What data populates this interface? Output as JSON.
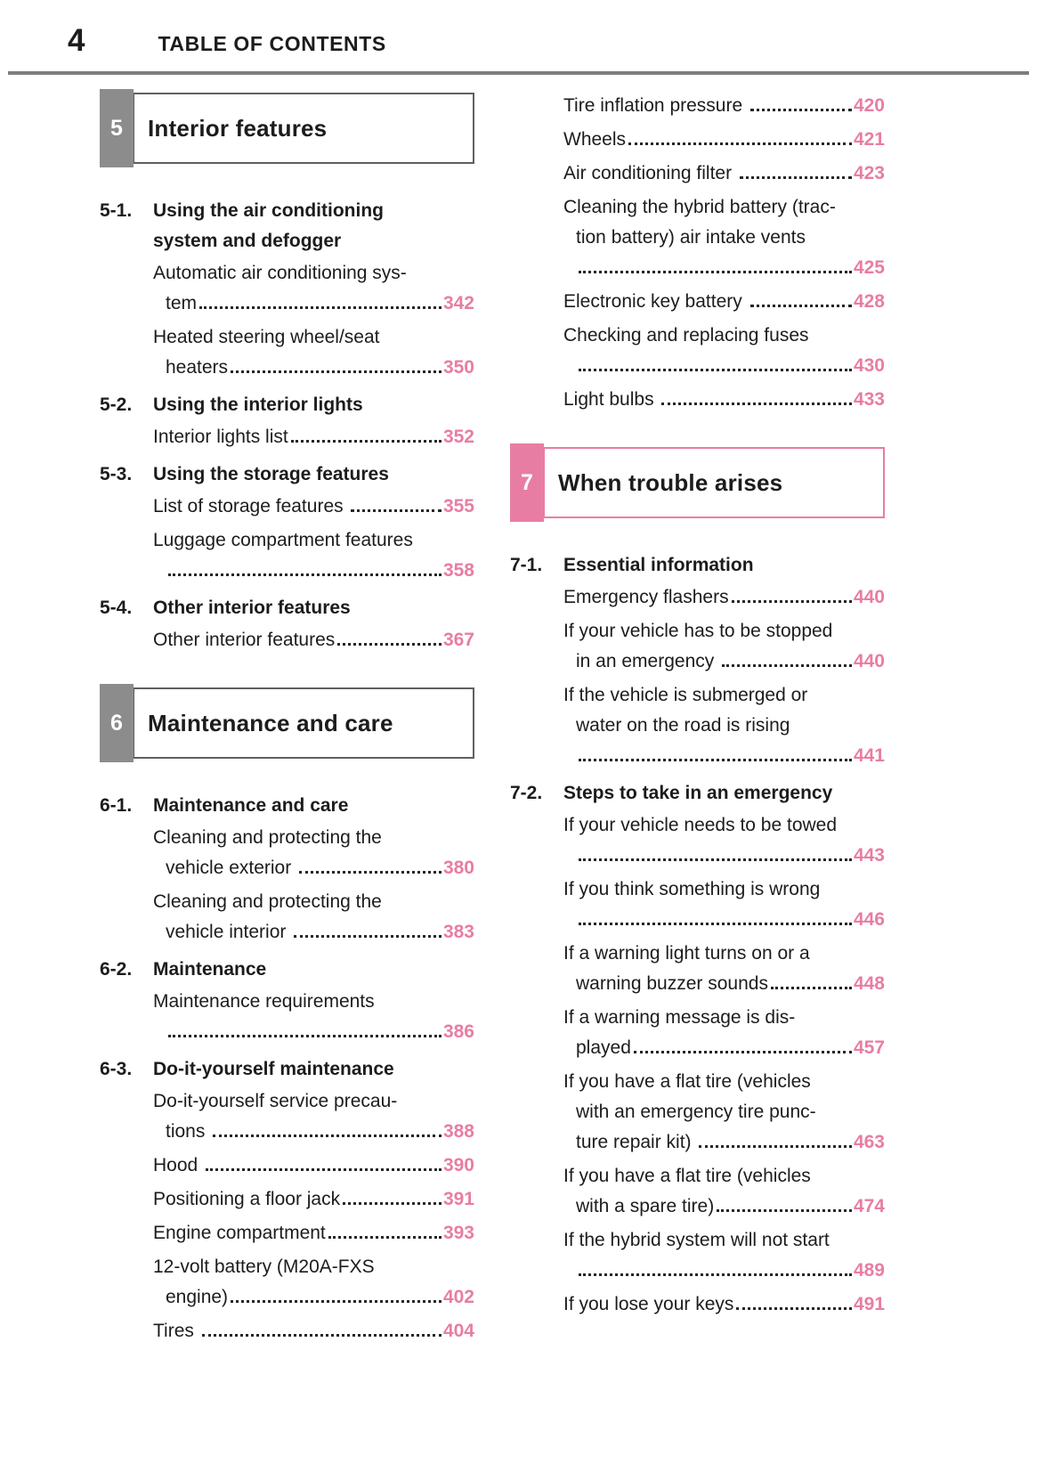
{
  "page": {
    "number": "4",
    "header_title": "TABLE OF CONTENTS"
  },
  "colors": {
    "accent_pink": "#e87da4",
    "tab_gray": "#8c8c8c",
    "box_border_gray": "#5f5f5f",
    "rule_gray": "#7e7e7e",
    "text_black": "#1c1c1c",
    "leader_dot": "#262626"
  },
  "left_column": {
    "blocks": [
      {
        "type": "section",
        "num": "5",
        "title": "Interior features",
        "color": "gray",
        "first": true
      },
      {
        "type": "heading",
        "num": "5-1.",
        "lines": [
          "Using the air conditioning",
          "system and defogger"
        ]
      },
      {
        "type": "entry",
        "lines": [
          "Automatic air conditioning sys-",
          "tem"
        ],
        "page": "342"
      },
      {
        "type": "entry",
        "lines": [
          "Heated steering wheel/seat",
          "heaters"
        ],
        "page": "350"
      },
      {
        "type": "heading",
        "num": "5-2.",
        "lines": [
          "Using the interior lights"
        ]
      },
      {
        "type": "entry",
        "lines": [
          "Interior lights list"
        ],
        "page": "352"
      },
      {
        "type": "heading",
        "num": "5-3.",
        "lines": [
          "Using the storage features"
        ]
      },
      {
        "type": "entry",
        "lines": [
          "List of storage features "
        ],
        "page": "355"
      },
      {
        "type": "entry",
        "lines": [
          "Luggage compartment features",
          ""
        ],
        "page": "358"
      },
      {
        "type": "heading",
        "num": "5-4.",
        "lines": [
          "Other interior features"
        ]
      },
      {
        "type": "entry",
        "lines": [
          "Other interior features"
        ],
        "page": "367"
      },
      {
        "type": "section",
        "num": "6",
        "title": "Maintenance and care",
        "color": "gray"
      },
      {
        "type": "heading",
        "num": "6-1.",
        "lines": [
          "Maintenance and care"
        ]
      },
      {
        "type": "entry",
        "lines": [
          "Cleaning and protecting the",
          "vehicle exterior "
        ],
        "page": "380"
      },
      {
        "type": "entry",
        "lines": [
          "Cleaning and protecting the",
          "vehicle interior "
        ],
        "page": "383"
      },
      {
        "type": "heading",
        "num": "6-2.",
        "lines": [
          "Maintenance"
        ]
      },
      {
        "type": "entry",
        "lines": [
          "Maintenance requirements",
          ""
        ],
        "page": "386"
      },
      {
        "type": "heading",
        "num": "6-3.",
        "lines": [
          "Do-it-yourself maintenance"
        ]
      },
      {
        "type": "entry",
        "lines": [
          "Do-it-yourself service precau-",
          "tions "
        ],
        "page": "388"
      },
      {
        "type": "entry",
        "lines": [
          "Hood "
        ],
        "page": "390"
      },
      {
        "type": "entry",
        "lines": [
          "Positioning a floor jack"
        ],
        "page": "391"
      },
      {
        "type": "entry",
        "lines": [
          "Engine compartment"
        ],
        "page": "393"
      },
      {
        "type": "entry",
        "lines": [
          "12-volt battery (M20A-FXS",
          "engine)"
        ],
        "page": "402"
      },
      {
        "type": "entry",
        "lines": [
          "Tires "
        ],
        "page": "404"
      }
    ]
  },
  "right_column": {
    "blocks": [
      {
        "type": "entry",
        "lines": [
          "Tire inflation pressure "
        ],
        "page": "420"
      },
      {
        "type": "entry",
        "lines": [
          "Wheels"
        ],
        "page": "421"
      },
      {
        "type": "entry",
        "lines": [
          "Air conditioning filter "
        ],
        "page": "423"
      },
      {
        "type": "entry",
        "lines": [
          "Cleaning the hybrid battery (trac-",
          "tion battery) air intake vents",
          ""
        ],
        "page": "425"
      },
      {
        "type": "entry",
        "lines": [
          "Electronic key battery "
        ],
        "page": "428"
      },
      {
        "type": "entry",
        "lines": [
          "Checking and replacing fuses",
          ""
        ],
        "page": "430"
      },
      {
        "type": "entry",
        "lines": [
          "Light bulbs "
        ],
        "page": "433"
      },
      {
        "type": "section",
        "num": "7",
        "title": "When trouble arises",
        "color": "pink"
      },
      {
        "type": "heading",
        "num": "7-1.",
        "lines": [
          "Essential information"
        ]
      },
      {
        "type": "entry",
        "lines": [
          "Emergency flashers"
        ],
        "page": "440"
      },
      {
        "type": "entry",
        "lines": [
          "If your vehicle has to be stopped",
          "in an emergency "
        ],
        "page": "440"
      },
      {
        "type": "entry",
        "lines": [
          "If the vehicle is submerged or",
          "water on the road is rising",
          ""
        ],
        "page": "441"
      },
      {
        "type": "heading",
        "num": "7-2.",
        "lines": [
          "Steps to take in an emergency"
        ]
      },
      {
        "type": "entry",
        "lines": [
          "If your vehicle needs to be towed",
          ""
        ],
        "page": "443"
      },
      {
        "type": "entry",
        "lines": [
          "If you think something is wrong",
          ""
        ],
        "page": "446"
      },
      {
        "type": "entry",
        "lines": [
          "If a warning light turns on or a",
          "warning buzzer sounds"
        ],
        "page": "448"
      },
      {
        "type": "entry",
        "lines": [
          "If a warning message is dis-",
          "played"
        ],
        "page": "457"
      },
      {
        "type": "entry",
        "lines": [
          "If you have a flat tire (vehicles",
          "with an emergency tire punc-",
          "ture repair kit) "
        ],
        "page": "463"
      },
      {
        "type": "entry",
        "lines": [
          "If you have a flat tire (vehicles",
          "with a spare tire)"
        ],
        "page": "474"
      },
      {
        "type": "entry",
        "lines": [
          "If the hybrid system will not start",
          ""
        ],
        "page": "489"
      },
      {
        "type": "entry",
        "lines": [
          "If you lose your keys"
        ],
        "page": "491"
      }
    ]
  }
}
